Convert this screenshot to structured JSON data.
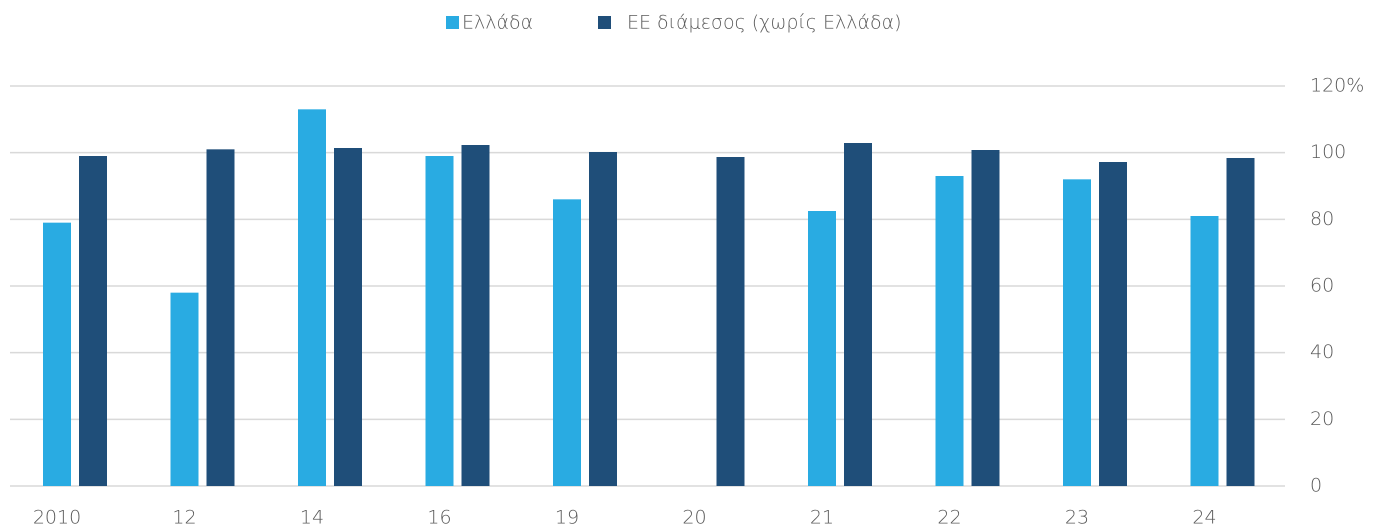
{
  "chart_data": {
    "type": "bar",
    "categories": [
      "2010",
      "12",
      "14",
      "16",
      "19",
      "20",
      "21",
      "22",
      "23",
      "24"
    ],
    "series": [
      {
        "name": "Ελλάδα",
        "color": "#29abe2",
        "values": [
          79,
          58,
          113,
          99,
          86,
          null,
          82.5,
          93,
          92,
          81
        ]
      },
      {
        "name": "ΕΕ διάμεσος (χωρίς Ελλάδα)",
        "color": "#1f4e79",
        "values": [
          99,
          101,
          101.4,
          102.3,
          100.2,
          98.7,
          102.9,
          100.8,
          97.2,
          98.4
        ]
      }
    ],
    "ylim": [
      0,
      120
    ],
    "yticks": [
      0,
      20,
      40,
      60,
      80,
      100,
      {
        "value": 120,
        "label": "120%"
      }
    ],
    "grid": true,
    "legend": "top"
  }
}
